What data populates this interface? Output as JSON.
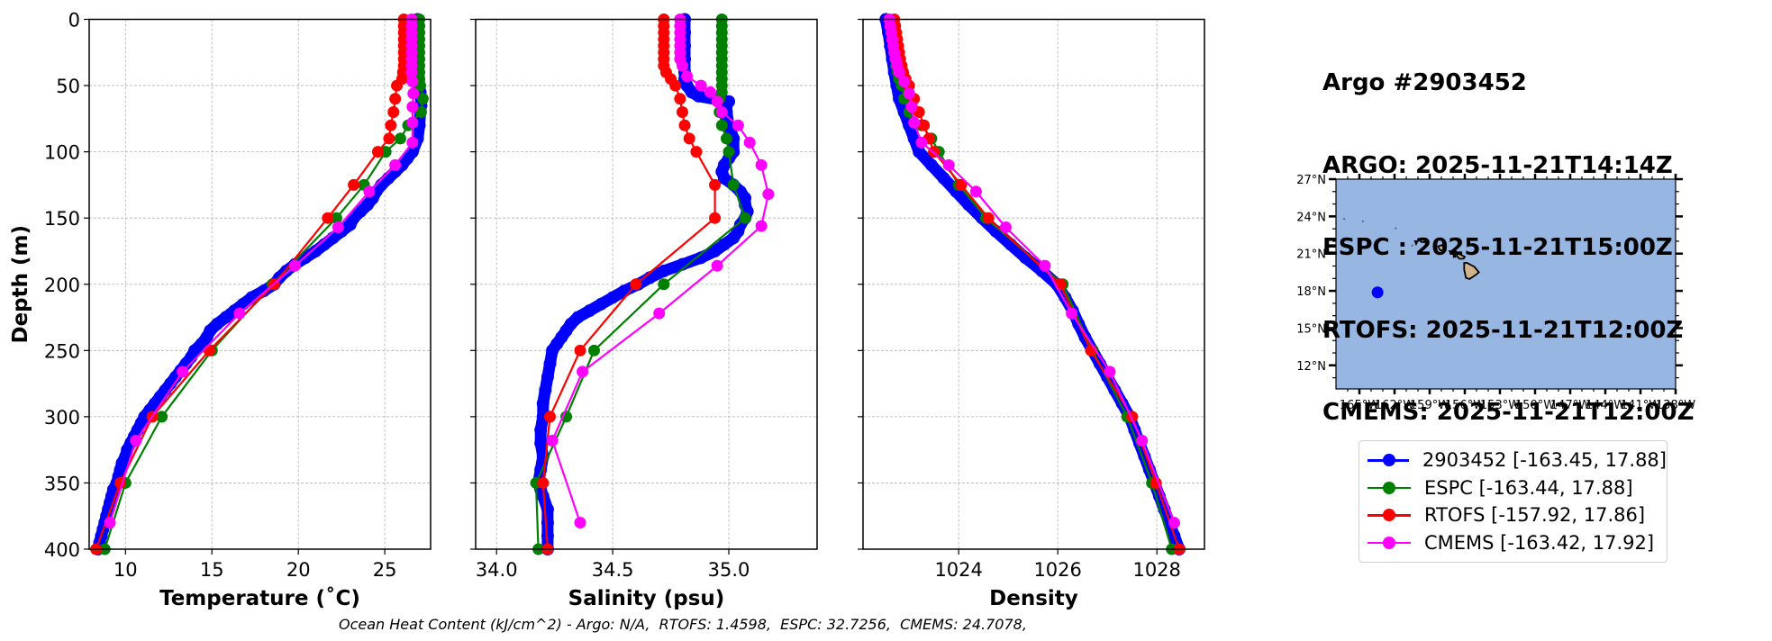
{
  "header": {
    "lines": [
      "Argo #2903452",
      "ARGO: 2025-11-21T14:14Z",
      "ESPC : 2025-11-21T15:00Z",
      "RTOFS: 2025-11-21T12:00Z",
      "CMEMS: 2025-11-21T12:00Z"
    ]
  },
  "footer": {
    "text": "Ocean Heat Content (kJ/cm^2) - Argo: N/A,  RTOFS: 1.4598,  ESPC: 32.7256,  CMEMS: 24.7078,"
  },
  "colors": {
    "argo": "#0000ff",
    "espc": "#008000",
    "rtofs": "#ff0000",
    "cmems": "#ff00ff",
    "ocean": "#97b6e1",
    "land": "#d2b48c",
    "grid": "#b0b0b0"
  },
  "legend": {
    "entries": [
      {
        "key": "argo",
        "label": "2903452 [-163.45, 17.88]"
      },
      {
        "key": "espc",
        "label": "ESPC [-163.44, 17.88]"
      },
      {
        "key": "rtofs",
        "label": "RTOFS [-157.92, 17.86]"
      },
      {
        "key": "cmems",
        "label": "CMEMS [-163.42, 17.92]"
      }
    ]
  },
  "chart_data": [
    {
      "type": "line",
      "id": "temperature",
      "xlabel": "Temperature (˚C)",
      "ylabel": "Depth (m)",
      "xlim": [
        7.9,
        27.65
      ],
      "ylim": [
        400,
        0
      ],
      "xticks": [
        10,
        15,
        20,
        25
      ],
      "yticks": [
        0,
        50,
        100,
        150,
        200,
        250,
        300,
        350,
        400
      ],
      "grid": true,
      "series": [
        {
          "name": "2903452",
          "key": "argo",
          "dense": true,
          "depth": [
            0,
            10,
            20,
            30,
            40,
            50,
            55,
            60,
            65,
            70,
            80,
            90,
            100,
            105,
            110,
            115,
            120,
            125,
            130,
            135,
            140,
            145,
            150,
            155,
            160,
            165,
            170,
            175,
            180,
            185,
            190,
            195,
            200,
            205,
            210,
            215,
            220,
            225,
            230,
            235,
            240,
            245,
            250,
            255,
            260,
            265,
            270,
            275,
            280,
            285,
            290,
            295,
            300,
            305,
            310,
            315,
            320,
            325,
            330,
            335,
            340,
            345,
            350,
            355,
            360,
            365,
            370,
            375,
            380,
            385,
            390,
            395,
            400
          ],
          "values": [
            26.9,
            26.9,
            26.9,
            26.95,
            26.95,
            27.0,
            27.05,
            27.1,
            27.1,
            27.05,
            27.0,
            26.9,
            26.6,
            26.3,
            26.0,
            25.6,
            25.2,
            24.8,
            24.5,
            24.3,
            24.0,
            23.6,
            23.2,
            23.0,
            22.5,
            22.0,
            21.5,
            21.0,
            20.4,
            19.8,
            19.3,
            18.9,
            18.6,
            18.0,
            17.3,
            16.8,
            16.3,
            15.8,
            15.3,
            14.9,
            14.7,
            14.4,
            14.0,
            13.8,
            13.5,
            13.2,
            12.9,
            12.6,
            12.3,
            12.0,
            11.7,
            11.4,
            11.1,
            10.9,
            10.7,
            10.5,
            10.3,
            10.1,
            10.0,
            9.8,
            9.7,
            9.6,
            9.5,
            9.3,
            9.2,
            9.1,
            9.0,
            8.9,
            8.8,
            8.7,
            8.6,
            8.5,
            8.4
          ]
        },
        {
          "name": "ESPC",
          "key": "espc",
          "depth": [
            0,
            5,
            10,
            15,
            20,
            25,
            30,
            35,
            40,
            45,
            50,
            60,
            70,
            80,
            90,
            100,
            125,
            150,
            200,
            250,
            300,
            350,
            400
          ],
          "values": [
            27.0,
            27.0,
            27.0,
            27.0,
            27.0,
            27.0,
            27.0,
            27.0,
            27.0,
            27.0,
            27.05,
            27.2,
            27.1,
            26.35,
            25.9,
            25.05,
            23.8,
            22.2,
            18.5,
            15.0,
            12.1,
            10.0,
            8.8
          ]
        },
        {
          "name": "RTOFS",
          "key": "rtofs",
          "depth": [
            0,
            5,
            10,
            15,
            20,
            25,
            30,
            35,
            40,
            45,
            50,
            60,
            70,
            80,
            90,
            100,
            125,
            150,
            200,
            250,
            300,
            350,
            400
          ],
          "values": [
            26.1,
            26.1,
            26.1,
            26.1,
            26.1,
            26.1,
            26.1,
            26.1,
            26.05,
            26.0,
            25.7,
            25.6,
            25.5,
            25.35,
            25.25,
            24.6,
            23.2,
            21.7,
            18.6,
            14.85,
            11.55,
            9.7,
            8.3
          ]
        },
        {
          "name": "CMEMS",
          "key": "cmems",
          "depth": [
            0,
            5,
            10,
            15,
            20,
            25,
            30,
            35,
            40,
            47,
            56,
            66,
            78,
            93,
            110,
            130,
            157,
            186,
            222,
            266,
            318,
            380
          ],
          "values": [
            26.55,
            26.55,
            26.55,
            26.55,
            26.55,
            26.55,
            26.55,
            26.55,
            26.55,
            26.6,
            26.65,
            26.6,
            26.6,
            26.6,
            25.6,
            24.1,
            22.3,
            19.8,
            16.6,
            13.3,
            10.6,
            9.1
          ]
        }
      ]
    },
    {
      "type": "line",
      "id": "salinity",
      "xlabel": "Salinity (psu)",
      "ylabel": "",
      "xlim": [
        33.91,
        35.38
      ],
      "ylim": [
        400,
        0
      ],
      "xticks": [
        34.0,
        34.5,
        35.0
      ],
      "xticklabels": [
        "34.0",
        "34.5",
        "35.0"
      ],
      "yticks": [
        0,
        50,
        100,
        150,
        200,
        250,
        300,
        350,
        400
      ],
      "grid": true,
      "series": [
        {
          "name": "2903452",
          "key": "argo",
          "dense": true,
          "depth": [
            0,
            10,
            20,
            30,
            40,
            45,
            50,
            55,
            58,
            62,
            65,
            70,
            80,
            90,
            100,
            105,
            110,
            115,
            120,
            125,
            130,
            135,
            140,
            145,
            150,
            155,
            160,
            165,
            170,
            175,
            180,
            185,
            190,
            195,
            200,
            205,
            210,
            215,
            220,
            225,
            230,
            235,
            240,
            245,
            250,
            260,
            270,
            280,
            290,
            300,
            310,
            320,
            330,
            340,
            350,
            355,
            360,
            370,
            380,
            390,
            400
          ],
          "values": [
            34.81,
            34.81,
            34.81,
            34.81,
            34.81,
            34.81,
            34.82,
            34.84,
            34.87,
            35.0,
            34.99,
            34.99,
            35.0,
            35.02,
            35.02,
            35.0,
            34.98,
            34.97,
            34.98,
            35.02,
            35.05,
            35.07,
            35.07,
            35.08,
            35.07,
            35.05,
            35.04,
            35.02,
            34.98,
            34.94,
            34.88,
            34.8,
            34.72,
            34.66,
            34.61,
            34.55,
            34.5,
            34.45,
            34.4,
            34.35,
            34.32,
            34.3,
            34.28,
            34.26,
            34.24,
            34.23,
            34.22,
            34.21,
            34.2,
            34.2,
            34.19,
            34.19,
            34.2,
            34.19,
            34.18,
            34.19,
            34.2,
            34.22,
            34.22,
            34.22,
            34.22
          ]
        },
        {
          "name": "ESPC",
          "key": "espc",
          "depth": [
            0,
            5,
            10,
            15,
            20,
            25,
            30,
            35,
            40,
            45,
            50,
            55,
            60,
            70,
            80,
            90,
            100,
            125,
            150,
            200,
            250,
            300,
            350,
            400
          ],
          "values": [
            34.97,
            34.97,
            34.97,
            34.97,
            34.97,
            34.97,
            34.97,
            34.97,
            34.97,
            34.97,
            34.97,
            34.97,
            34.96,
            34.96,
            34.97,
            34.99,
            35.0,
            35.02,
            35.07,
            34.72,
            34.42,
            34.3,
            34.17,
            34.18
          ]
        },
        {
          "name": "RTOFS",
          "key": "rtofs",
          "depth": [
            0,
            5,
            10,
            15,
            20,
            25,
            30,
            35,
            40,
            45,
            50,
            60,
            70,
            80,
            90,
            100,
            125,
            150,
            200,
            250,
            300,
            350,
            400
          ],
          "values": [
            34.72,
            34.72,
            34.72,
            34.72,
            34.72,
            34.72,
            34.72,
            34.72,
            34.73,
            34.75,
            34.77,
            34.79,
            34.8,
            34.81,
            34.83,
            34.86,
            34.94,
            34.94,
            34.6,
            34.36,
            34.23,
            34.2,
            34.22
          ]
        },
        {
          "name": "CMEMS",
          "key": "cmems",
          "depth": [
            0,
            5,
            10,
            15,
            20,
            25,
            30,
            35,
            43,
            50,
            55,
            62,
            70,
            80,
            93,
            110,
            132,
            156,
            186,
            222,
            266,
            318,
            380
          ],
          "values": [
            34.79,
            34.79,
            34.79,
            34.79,
            34.79,
            34.79,
            34.79,
            34.8,
            34.82,
            34.88,
            34.92,
            34.95,
            34.97,
            35.04,
            35.09,
            35.14,
            35.17,
            35.14,
            34.95,
            34.7,
            34.37,
            34.24,
            34.36
          ]
        }
      ]
    },
    {
      "type": "line",
      "id": "density",
      "xlabel": "Density",
      "ylabel": "",
      "xlim": [
        1022.07,
        1028.96
      ],
      "ylim": [
        400,
        0
      ],
      "xticks": [
        1024,
        1026,
        1028
      ],
      "yticks": [
        0,
        50,
        100,
        150,
        200,
        250,
        300,
        350,
        400
      ],
      "grid": true,
      "series": [
        {
          "name": "2903452",
          "key": "argo",
          "dense": true,
          "depth": [
            0,
            10,
            20,
            30,
            40,
            50,
            60,
            70,
            80,
            90,
            100,
            110,
            120,
            130,
            140,
            150,
            160,
            170,
            180,
            190,
            200,
            210,
            220,
            230,
            240,
            250,
            260,
            270,
            280,
            290,
            300,
            310,
            320,
            330,
            340,
            350,
            360,
            370,
            380,
            390,
            400
          ],
          "values": [
            1022.53,
            1022.58,
            1022.62,
            1022.66,
            1022.7,
            1022.75,
            1022.8,
            1022.9,
            1023.0,
            1023.1,
            1023.2,
            1023.45,
            1023.7,
            1023.95,
            1024.2,
            1024.47,
            1024.75,
            1025.05,
            1025.35,
            1025.68,
            1025.98,
            1026.15,
            1026.3,
            1026.42,
            1026.55,
            1026.7,
            1026.85,
            1027.0,
            1027.15,
            1027.3,
            1027.45,
            1027.55,
            1027.65,
            1027.75,
            1027.85,
            1027.95,
            1028.05,
            1028.15,
            1028.25,
            1028.35,
            1028.45
          ]
        },
        {
          "name": "ESPC",
          "key": "espc",
          "depth": [
            0,
            5,
            10,
            15,
            20,
            25,
            30,
            35,
            40,
            45,
            50,
            60,
            70,
            80,
            90,
            100,
            125,
            150,
            200,
            250,
            300,
            350,
            400
          ],
          "values": [
            1022.6,
            1022.62,
            1022.64,
            1022.66,
            1022.68,
            1022.7,
            1022.72,
            1022.74,
            1022.77,
            1022.8,
            1022.85,
            1022.9,
            1023.0,
            1023.25,
            1023.45,
            1023.6,
            1024.0,
            1024.55,
            1026.1,
            1026.7,
            1027.4,
            1027.9,
            1028.3
          ]
        },
        {
          "name": "RTOFS",
          "key": "rtofs",
          "depth": [
            0,
            5,
            10,
            15,
            20,
            25,
            30,
            35,
            40,
            45,
            50,
            60,
            70,
            80,
            90,
            100,
            125,
            150,
            200,
            250,
            300,
            350,
            400
          ],
          "values": [
            1022.7,
            1022.72,
            1022.74,
            1022.76,
            1022.78,
            1022.8,
            1022.82,
            1022.85,
            1022.88,
            1022.93,
            1023.0,
            1023.1,
            1023.2,
            1023.3,
            1023.4,
            1023.5,
            1024.05,
            1024.6,
            1026.05,
            1026.67,
            1027.5,
            1027.98,
            1028.45
          ]
        },
        {
          "name": "CMEMS",
          "key": "cmems",
          "depth": [
            0,
            5,
            10,
            15,
            20,
            25,
            30,
            35,
            40,
            47,
            56,
            66,
            78,
            93,
            110,
            130,
            157,
            186,
            222,
            266,
            318,
            380
          ],
          "values": [
            1022.6,
            1022.62,
            1022.64,
            1022.66,
            1022.68,
            1022.7,
            1022.73,
            1022.76,
            1022.8,
            1022.9,
            1023.0,
            1023.05,
            1023.1,
            1023.25,
            1023.8,
            1024.35,
            1024.95,
            1025.74,
            1026.28,
            1027.05,
            1027.7,
            1028.35
          ]
        }
      ]
    },
    {
      "type": "map",
      "id": "location-map",
      "lon_range": [
        -167.0,
        -138.0
      ],
      "lat_range": [
        10.1,
        27.0
      ],
      "xticks": [
        -165,
        -162,
        -159,
        -156,
        -153,
        -150,
        -147,
        -144,
        -141,
        -138
      ],
      "xticklabels": [
        "165°W",
        "162°W",
        "159°W",
        "156°W",
        "153°W",
        "150°W",
        "147°W",
        "144°W",
        "141°W",
        "138°W"
      ],
      "yticks": [
        12,
        15,
        18,
        21,
        24,
        27
      ],
      "yticklabels": [
        "12°N",
        "15°N",
        "18°N",
        "21°N",
        "24°N",
        "27°N"
      ],
      "marker": {
        "lon": -163.45,
        "lat": 17.88,
        "key": "argo"
      }
    }
  ]
}
